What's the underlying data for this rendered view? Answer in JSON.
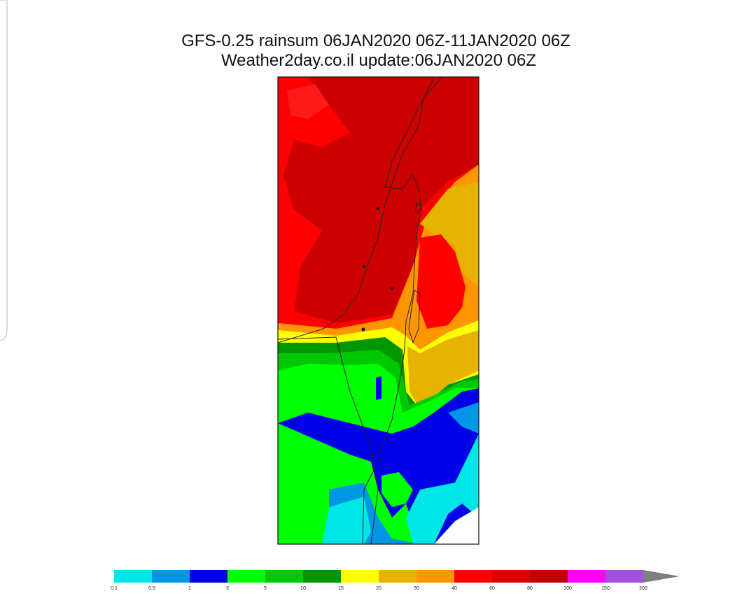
{
  "title_lines": [
    "GFS-0.25 rainsum 06JAN2020 06Z-11JAN2020 06Z",
    "Weather2day.co.il update:06JAN2020 06Z"
  ],
  "colorbar": {
    "levels": [
      0.1,
      0.5,
      1,
      3,
      5,
      10,
      15,
      20,
      30,
      40,
      60,
      80,
      100,
      150,
      200
    ],
    "colors": [
      "#00e6e6",
      "#0096e6",
      "#0000e6",
      "#00ff00",
      "#00c800",
      "#009600",
      "#ffff00",
      "#e6b400",
      "#ff9600",
      "#ff0000",
      "#dc0000",
      "#bf0000",
      "#ff00ff",
      "#a050dc"
    ]
  }
}
